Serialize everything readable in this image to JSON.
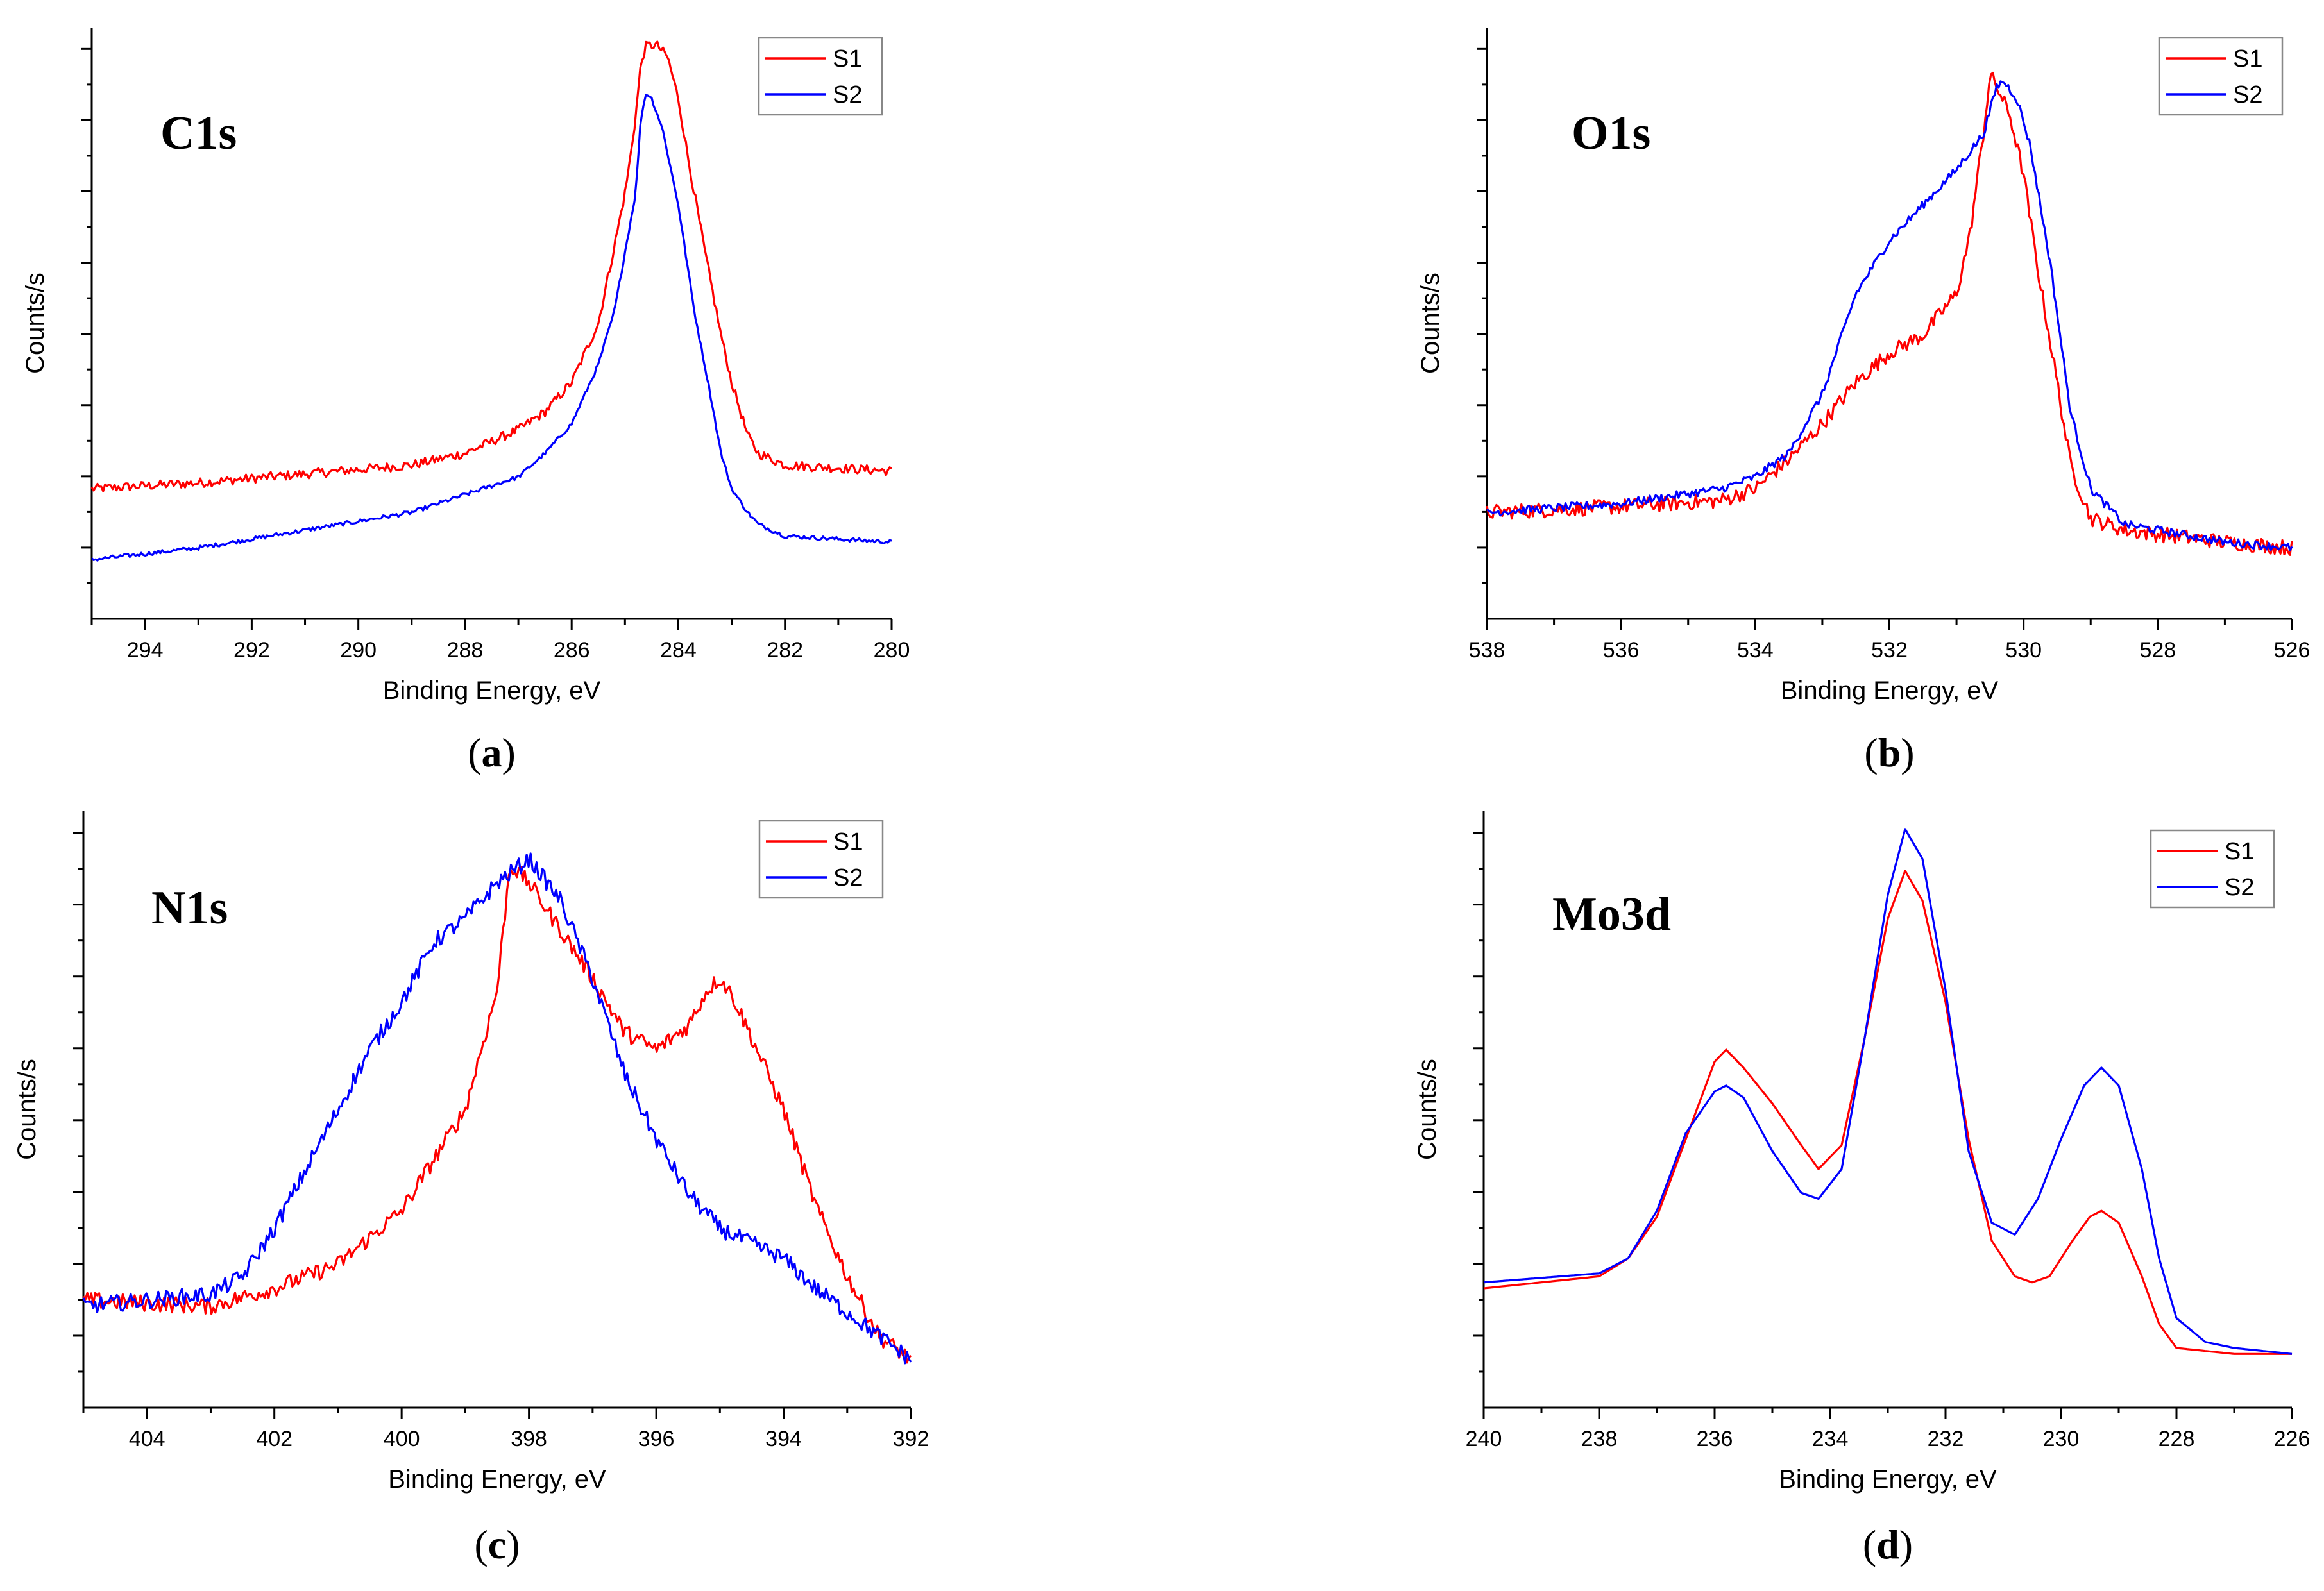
{
  "chart_data": [
    {
      "type": "line",
      "panel": "a",
      "caption_letter": "a",
      "title": "C1s",
      "xlabel": "Binding Energy, eV",
      "ylabel": "Counts/s",
      "xlim": [
        295,
        280
      ],
      "ylim": [
        0,
        100
      ],
      "x_ticks": [
        294,
        292,
        290,
        288,
        286,
        284,
        282,
        280
      ],
      "y_minor_tick_count": 16,
      "legend_position": "top-right",
      "series": [
        {
          "name": "S1",
          "color": "#ff0000",
          "noise": 0.8,
          "points": [
            [
              295,
              22
            ],
            [
              293,
              23
            ],
            [
              291,
              24.5
            ],
            [
              289,
              26
            ],
            [
              288,
              28
            ],
            [
              287.5,
              30
            ],
            [
              287,
              32
            ],
            [
              286.5,
              35
            ],
            [
              286,
              40
            ],
            [
              285.5,
              50
            ],
            [
              285.2,
              63
            ],
            [
              285,
              72
            ],
            [
              284.9,
              78
            ],
            [
              284.8,
              85
            ],
            [
              284.7,
              94
            ],
            [
              284.6,
              97
            ],
            [
              284.4,
              97
            ],
            [
              284.2,
              95
            ],
            [
              284,
              88
            ],
            [
              283.8,
              77
            ],
            [
              283.5,
              62
            ],
            [
              283.2,
              48
            ],
            [
              283,
              40
            ],
            [
              282.7,
              31
            ],
            [
              282.5,
              28
            ],
            [
              282,
              26
            ],
            [
              281,
              25.5
            ],
            [
              280,
              25
            ]
          ]
        },
        {
          "name": "S2",
          "color": "#0000ff",
          "noise": 0.35,
          "points": [
            [
              295,
              10
            ],
            [
              293,
              12
            ],
            [
              291,
              15
            ],
            [
              289,
              18
            ],
            [
              288,
              21
            ],
            [
              287,
              24
            ],
            [
              286.5,
              28
            ],
            [
              286,
              33
            ],
            [
              285.5,
              43
            ],
            [
              285.2,
              52
            ],
            [
              285,
              62
            ],
            [
              284.8,
              72
            ],
            [
              284.7,
              85
            ],
            [
              284.6,
              89
            ],
            [
              284.5,
              88
            ],
            [
              284.3,
              83
            ],
            [
              284,
              70
            ],
            [
              283.7,
              52
            ],
            [
              283.4,
              38
            ],
            [
              283.2,
              28
            ],
            [
              283,
              22
            ],
            [
              282.7,
              18
            ],
            [
              282.5,
              16
            ],
            [
              282,
              14
            ],
            [
              281,
              13.5
            ],
            [
              280,
              13
            ]
          ]
        }
      ]
    },
    {
      "type": "line",
      "panel": "b",
      "caption_letter": "b",
      "title": "O1s",
      "xlabel": "Binding Energy, eV",
      "ylabel": "Counts/s",
      "xlim": [
        538,
        526
      ],
      "ylim": [
        0,
        100
      ],
      "x_ticks": [
        538,
        536,
        534,
        532,
        530,
        528,
        526
      ],
      "y_minor_tick_count": 16,
      "legend_position": "top-right",
      "series": [
        {
          "name": "S1",
          "color": "#ff0000",
          "noise": 1.3,
          "points": [
            [
              538,
              18
            ],
            [
              536,
              19
            ],
            [
              534.5,
              20
            ],
            [
              534,
              22
            ],
            [
              533.5,
              27
            ],
            [
              533,
              33
            ],
            [
              532.5,
              40
            ],
            [
              532,
              45
            ],
            [
              531.5,
              48
            ],
            [
              531,
              55
            ],
            [
              530.8,
              65
            ],
            [
              530.6,
              82
            ],
            [
              530.5,
              92
            ],
            [
              530.4,
              90
            ],
            [
              530.2,
              85
            ],
            [
              530,
              75
            ],
            [
              529.8,
              60
            ],
            [
              529.5,
              40
            ],
            [
              529.3,
              26
            ],
            [
              529,
              17
            ],
            [
              528.5,
              15
            ],
            [
              527,
              13
            ],
            [
              526,
              12
            ]
          ]
        },
        {
          "name": "S2",
          "color": "#0000ff",
          "noise": 0.7,
          "points": [
            [
              538,
              18
            ],
            [
              536,
              19.5
            ],
            [
              534.5,
              22
            ],
            [
              534,
              24
            ],
            [
              533.5,
              28
            ],
            [
              533,
              38
            ],
            [
              532.5,
              55
            ],
            [
              532,
              64
            ],
            [
              531.5,
              70
            ],
            [
              531,
              76
            ],
            [
              530.6,
              82
            ],
            [
              530.4,
              90
            ],
            [
              530.3,
              91
            ],
            [
              530.1,
              88
            ],
            [
              529.9,
              80
            ],
            [
              529.6,
              60
            ],
            [
              529.3,
              35
            ],
            [
              529,
              22
            ],
            [
              528.5,
              16
            ],
            [
              527,
              13
            ],
            [
              526,
              12
            ]
          ]
        }
      ]
    },
    {
      "type": "line",
      "panel": "c",
      "caption_letter": "c",
      "title": "N1s",
      "xlabel": "Binding Energy, eV",
      "ylabel": "Counts/s",
      "xlim": [
        405,
        392
      ],
      "ylim": [
        0,
        100
      ],
      "x_ticks": [
        404,
        402,
        400,
        398,
        396,
        394,
        392
      ],
      "y_minor_tick_count": 16,
      "legend_position": "top-right",
      "series": [
        {
          "name": "S1",
          "color": "#ff0000",
          "noise": 1.4,
          "points": [
            [
              405,
              18
            ],
            [
              403,
              17
            ],
            [
              402,
              20
            ],
            [
              401,
              24
            ],
            [
              400,
              33
            ],
            [
              399,
              50
            ],
            [
              398.5,
              70
            ],
            [
              398.3,
              91
            ],
            [
              398,
              88
            ],
            [
              397.5,
              80
            ],
            [
              397,
              72
            ],
            [
              396.5,
              63
            ],
            [
              396,
              60
            ],
            [
              395.5,
              64
            ],
            [
              395.2,
              70
            ],
            [
              395,
              72
            ],
            [
              394.8,
              69
            ],
            [
              394.5,
              62
            ],
            [
              394,
              50
            ],
            [
              393.5,
              34
            ],
            [
              393,
              22
            ],
            [
              392.5,
              12
            ],
            [
              392,
              8
            ]
          ]
        },
        {
          "name": "S2",
          "color": "#0000ff",
          "noise": 1.4,
          "points": [
            [
              405,
              17
            ],
            [
              403,
              19
            ],
            [
              402.5,
              22
            ],
            [
              402,
              30
            ],
            [
              401.5,
              40
            ],
            [
              401,
              50
            ],
            [
              400.5,
              60
            ],
            [
              400,
              68
            ],
            [
              399.5,
              78
            ],
            [
              399,
              82
            ],
            [
              398.5,
              88
            ],
            [
              398,
              92
            ],
            [
              397.5,
              85
            ],
            [
              397,
              72
            ],
            [
              396.5,
              56
            ],
            [
              396,
              45
            ],
            [
              395.5,
              36
            ],
            [
              395,
              30
            ],
            [
              394,
              25
            ],
            [
              393.5,
              20
            ],
            [
              393,
              16
            ],
            [
              392.5,
              12
            ],
            [
              392,
              8
            ]
          ]
        }
      ]
    },
    {
      "type": "line",
      "panel": "d",
      "caption_letter": "d",
      "title": "Mo3d",
      "xlabel": "Binding Energy, eV",
      "ylabel": "Counts/s",
      "xlim": [
        240,
        226
      ],
      "ylim": [
        0,
        100
      ],
      "x_ticks": [
        240,
        238,
        236,
        234,
        232,
        230,
        228,
        226
      ],
      "y_minor_tick_count": 16,
      "legend_position": "top-right",
      "series": [
        {
          "name": "S1",
          "color": "#ff0000",
          "noise": 0,
          "points": [
            [
              240,
              20
            ],
            [
              238,
              22
            ],
            [
              237.5,
              25
            ],
            [
              237,
              32
            ],
            [
              236.5,
              45
            ],
            [
              236,
              58
            ],
            [
              235.8,
              60
            ],
            [
              235.5,
              57
            ],
            [
              235,
              51
            ],
            [
              234.5,
              44
            ],
            [
              234.2,
              40
            ],
            [
              233.8,
              44
            ],
            [
              233.4,
              62
            ],
            [
              233,
              82
            ],
            [
              232.7,
              90
            ],
            [
              232.4,
              85
            ],
            [
              232,
              68
            ],
            [
              231.6,
              45
            ],
            [
              231.2,
              28
            ],
            [
              230.8,
              22
            ],
            [
              230.5,
              21
            ],
            [
              230.2,
              22
            ],
            [
              229.8,
              28
            ],
            [
              229.5,
              32
            ],
            [
              229.3,
              33
            ],
            [
              229,
              31
            ],
            [
              228.6,
              22
            ],
            [
              228.3,
              14
            ],
            [
              228,
              10
            ],
            [
              227,
              9
            ],
            [
              226,
              9
            ]
          ]
        },
        {
          "name": "S2",
          "color": "#0000ff",
          "noise": 0,
          "points": [
            [
              240,
              21
            ],
            [
              238,
              22.5
            ],
            [
              237.5,
              25
            ],
            [
              237,
              33
            ],
            [
              236.5,
              46
            ],
            [
              236,
              53
            ],
            [
              235.8,
              54
            ],
            [
              235.5,
              52
            ],
            [
              235,
              43
            ],
            [
              234.5,
              36
            ],
            [
              234.2,
              35
            ],
            [
              233.8,
              40
            ],
            [
              233.4,
              62
            ],
            [
              233,
              86
            ],
            [
              232.7,
              97
            ],
            [
              232.4,
              92
            ],
            [
              232,
              70
            ],
            [
              231.6,
              43
            ],
            [
              231.2,
              31
            ],
            [
              230.8,
              29
            ],
            [
              230.4,
              35
            ],
            [
              230,
              45
            ],
            [
              229.6,
              54
            ],
            [
              229.3,
              57
            ],
            [
              229,
              54
            ],
            [
              228.6,
              40
            ],
            [
              228.3,
              25
            ],
            [
              228,
              15
            ],
            [
              227.5,
              11
            ],
            [
              227,
              10
            ],
            [
              226,
              9
            ]
          ]
        }
      ]
    }
  ]
}
